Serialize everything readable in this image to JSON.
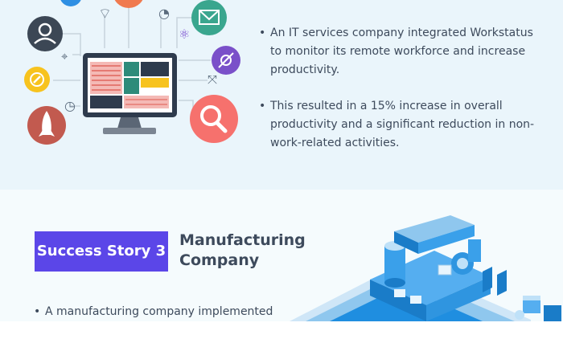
{
  "top_section": {
    "bullets": [
      "An IT services company integrated Workstatus to monitor its remote workforce and increase productivity.",
      "This resulted in a 15% increase in overall productivity and a significant reduction in non-work-related activities."
    ]
  },
  "story": {
    "badge": "Success Story 3",
    "company": "Manufacturing Company",
    "bullets": [
      "A manufacturing company implemented"
    ]
  },
  "colors": {
    "badge_bg": "#5b46e8",
    "text": "#3d4a5c",
    "top_bg": "#eaf5fb"
  },
  "icons": [
    "user-icon",
    "mail-icon",
    "wifi-icon",
    "map-icon",
    "compass-icon",
    "rocket-icon",
    "clock-icon",
    "search-icon",
    "satellite-icon",
    "share-icon",
    "atom-icon",
    "chart-icon"
  ]
}
